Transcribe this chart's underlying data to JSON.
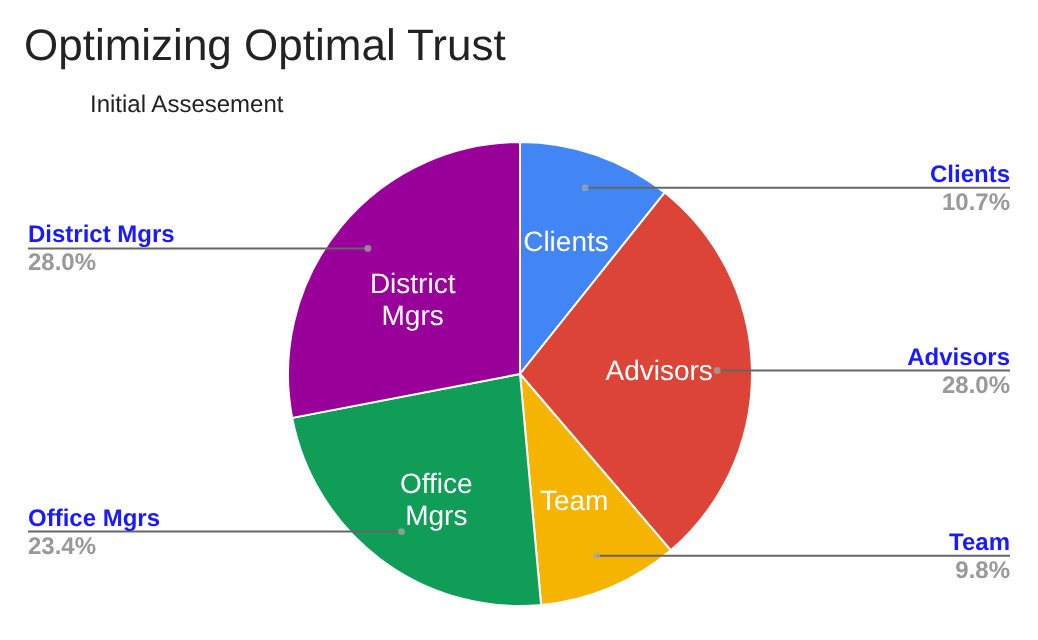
{
  "chart_data": {
    "type": "pie",
    "title": "Optimizing Optimal Trust",
    "subtitle": "Initial Assesement",
    "categories": [
      "Clients",
      "Advisors",
      "Team",
      "Office Mgrs",
      "District Mgrs"
    ],
    "values": [
      10.7,
      28.0,
      9.8,
      23.4,
      28.0
    ],
    "colors": [
      "#4285f4",
      "#db4437",
      "#f4b400",
      "#0f9d58",
      "#990099"
    ],
    "value_labels": [
      "10.7%",
      "28.0%",
      "9.8%",
      "23.4%",
      "28.0%"
    ]
  }
}
